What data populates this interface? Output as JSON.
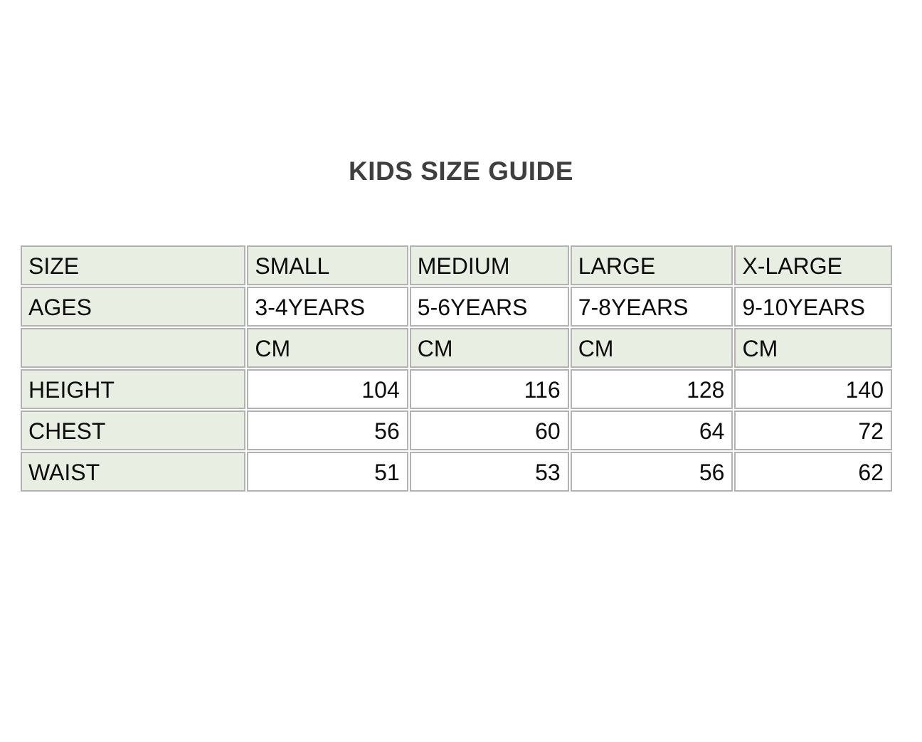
{
  "page": {
    "title": "KIDS SIZE GUIDE"
  },
  "colors": {
    "cell_green": "#e8efe2",
    "cell_white": "#ffffff",
    "border_gray": "#b2b2b2",
    "title_gray": "#3f3f3f",
    "text_black": "#0c0c0c"
  },
  "size_table": {
    "header": {
      "label": "SIZE",
      "cols": [
        "SMALL",
        "MEDIUM",
        "LARGE",
        "X-LARGE"
      ]
    },
    "ages": {
      "label": "AGES",
      "values": [
        "3-4YEARS",
        "5-6YEARS",
        "7-8YEARS",
        "9-10YEARS"
      ]
    },
    "units": {
      "label": "",
      "values": [
        "CM",
        "CM",
        "CM",
        "CM"
      ]
    },
    "measurements": [
      {
        "label": "HEIGHT",
        "values": [
          "104",
          "116",
          "128",
          "140"
        ]
      },
      {
        "label": "CHEST",
        "values": [
          "56",
          "60",
          "64",
          "72"
        ]
      },
      {
        "label": "WAIST",
        "values": [
          "51",
          "53",
          "56",
          "62"
        ]
      }
    ]
  }
}
